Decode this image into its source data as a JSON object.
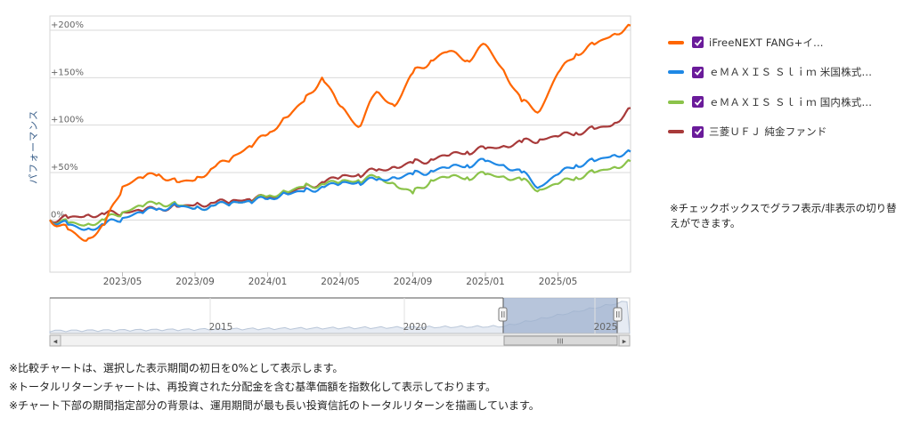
{
  "chart_data": {
    "type": "line",
    "ylabel": "パフォーマンス",
    "y_ticks": [
      "0%",
      "+50%",
      "+100%",
      "+150%",
      "+200%"
    ],
    "y_tick_values": [
      0,
      50,
      100,
      150,
      200
    ],
    "ylim": [
      -55,
      215
    ],
    "x_ticks": [
      "2023/05",
      "2023/09",
      "2024/01",
      "2024/05",
      "2024/09",
      "2025/01",
      "2025/05"
    ],
    "x_range": [
      "2023/01",
      "2025/09"
    ],
    "grid": "horizontal",
    "legend_position": "right",
    "x": [
      "2023/01",
      "2023/02",
      "2023/03",
      "2023/04",
      "2023/05",
      "2023/06",
      "2023/07",
      "2023/08",
      "2023/09",
      "2023/10",
      "2023/11",
      "2023/12",
      "2024/01",
      "2024/02",
      "2024/03",
      "2024/04",
      "2024/05",
      "2024/06",
      "2024/07",
      "2024/08",
      "2024/09",
      "2024/10",
      "2024/11",
      "2024/12",
      "2025/01",
      "2025/02",
      "2025/03",
      "2025/04",
      "2025/05",
      "2025/06",
      "2025/07",
      "2025/08",
      "2025/09"
    ],
    "series": [
      {
        "name": "iFreeNEXT FANG+イ...",
        "color": "#ff6600",
        "values": [
          0,
          -10,
          -22,
          -5,
          35,
          45,
          48,
          40,
          42,
          55,
          65,
          78,
          90,
          108,
          125,
          150,
          120,
          98,
          135,
          120,
          155,
          168,
          178,
          168,
          185,
          158,
          125,
          115,
          155,
          175,
          185,
          195,
          205
        ]
      },
      {
        "name": "ｅＭＡＸＩＳ Ｓｌｉｍ 米国株式...",
        "color": "#1e88e5",
        "values": [
          0,
          -5,
          -10,
          -5,
          2,
          8,
          12,
          15,
          12,
          15,
          18,
          20,
          22,
          28,
          30,
          35,
          38,
          40,
          42,
          45,
          48,
          52,
          55,
          58,
          62,
          58,
          50,
          35,
          48,
          58,
          62,
          68,
          72
        ]
      },
      {
        "name": "ｅＭＡＸＩＳ Ｓｌｉｍ 国内株式...",
        "color": "#8bc34a",
        "values": [
          0,
          -3,
          -5,
          0,
          8,
          15,
          18,
          16,
          12,
          15,
          18,
          20,
          25,
          30,
          35,
          38,
          40,
          42,
          45,
          38,
          28,
          42,
          45,
          45,
          48,
          46,
          42,
          32,
          38,
          45,
          50,
          55,
          62
        ]
      },
      {
        "name": "三菱ＵＦＪ 純金ファンド",
        "color": "#a83a3a",
        "values": [
          0,
          2,
          5,
          6,
          8,
          10,
          12,
          14,
          16,
          18,
          20,
          22,
          24,
          28,
          34,
          40,
          45,
          48,
          52,
          56,
          60,
          64,
          68,
          72,
          75,
          78,
          82,
          85,
          88,
          92,
          96,
          100,
          118
        ]
      }
    ]
  },
  "navigator": {
    "labels": [
      "2015",
      "2020",
      "2025"
    ],
    "scroll_thumb_glyph": "III",
    "left_arrow": "◂",
    "right_arrow": "▸"
  },
  "legend_note": "※チェックボックスでグラフ表示/非表示の切り替えができます。",
  "notes": [
    "※比較チャートは、選択した表示期間の初日を0%として表示します。",
    "※トータルリターンチャートは、再投資された分配金を含む基準価額を指数化して表示しております。",
    "※チャート下部の期間指定部分の背景は、運用期間が最も長い投資信託のトータルリターンを描画しています。"
  ]
}
